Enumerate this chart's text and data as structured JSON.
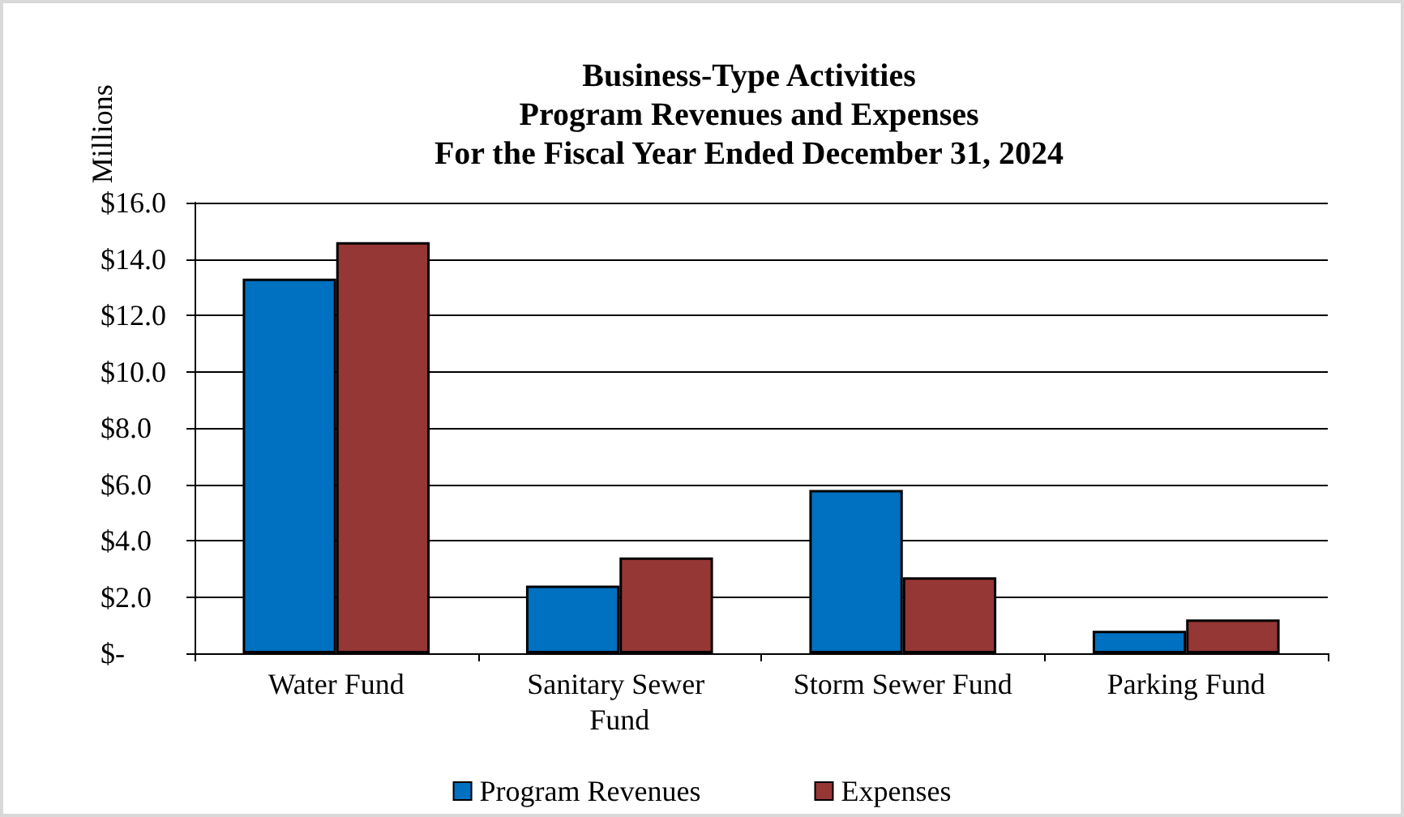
{
  "chart_data": {
    "type": "bar",
    "title": "Business-Type Activities\nProgram Revenues and Expenses\nFor the Fiscal Year Ended December 31, 2024",
    "ylabel": "Millions",
    "categories": [
      "Water Fund",
      "Sanitary Sewer Fund",
      "Storm Sewer Fund",
      "Parking Fund"
    ],
    "series": [
      {
        "name": "Program Revenues",
        "color": "#0070c0",
        "values": [
          13.3,
          2.4,
          5.8,
          0.8
        ]
      },
      {
        "name": "Expenses",
        "color": "#953735",
        "values": [
          14.6,
          3.4,
          2.7,
          1.2
        ]
      }
    ],
    "ylim": [
      0,
      16
    ],
    "yticks": [
      {
        "value": 0,
        "label": "$-"
      },
      {
        "value": 2,
        "label": "$2.0"
      },
      {
        "value": 4,
        "label": "$4.0"
      },
      {
        "value": 6,
        "label": "$6.0"
      },
      {
        "value": 8,
        "label": "$8.0"
      },
      {
        "value": 10,
        "label": "$10.0"
      },
      {
        "value": 12,
        "label": "$12.0"
      },
      {
        "value": 14,
        "label": "$14.0"
      },
      {
        "value": 16,
        "label": "$16.0"
      }
    ],
    "grid": "y",
    "legend": "bottom"
  }
}
